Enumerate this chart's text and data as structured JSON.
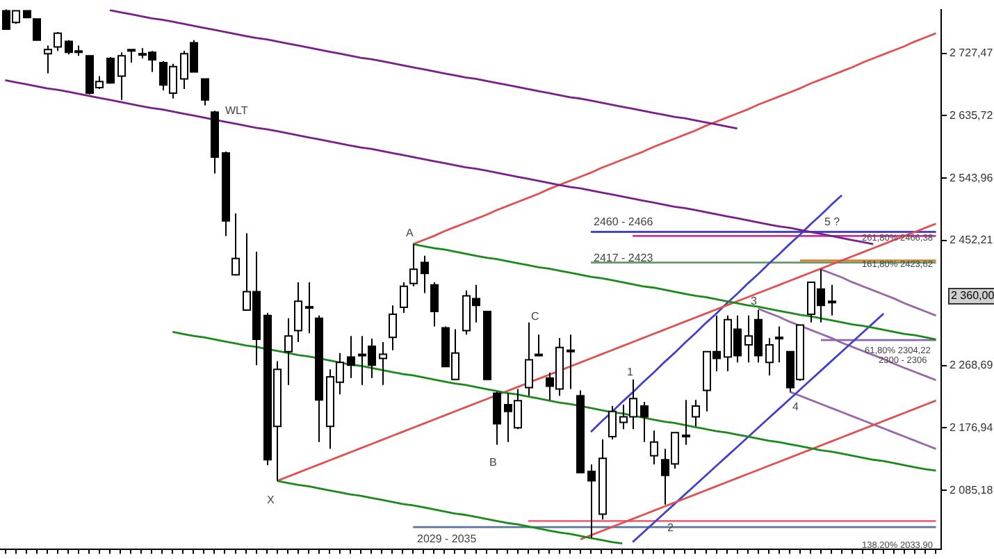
{
  "chart_data": {
    "type": "candlestick",
    "categories": [
      null,
      null,
      null,
      null,
      null,
      null,
      null,
      null,
      null,
      null,
      null,
      null,
      null,
      null,
      null,
      null,
      null,
      null,
      null,
      null,
      null,
      null,
      null,
      null,
      null,
      null,
      null,
      null,
      null,
      null,
      null,
      null,
      null,
      null,
      null,
      null,
      null,
      null,
      null,
      null,
      null,
      null,
      null,
      null,
      null,
      null,
      null,
      null,
      null,
      null,
      null,
      null,
      null,
      null,
      null,
      null,
      null,
      null,
      null,
      null,
      null,
      null,
      null,
      null,
      null,
      null,
      null,
      null,
      null,
      null,
      null,
      null,
      null,
      null,
      null,
      null,
      null,
      null,
      null,
      null,
      null,
      null,
      null,
      null,
      null,
      null,
      null,
      null,
      null,
      null
    ],
    "ohlc": [
      [
        2790,
        2792,
        2763,
        2763
      ],
      [
        2773,
        2790,
        2771,
        2790
      ],
      [
        2790,
        2790,
        2780,
        2780
      ],
      [
        2778,
        2778,
        2747,
        2747
      ],
      [
        2727,
        2739,
        2698,
        2733
      ],
      [
        2737,
        2759,
        2731,
        2757
      ],
      [
        2745,
        2747,
        2726,
        2729
      ],
      [
        2731,
        2739,
        2724,
        2731
      ],
      [
        2724,
        2724,
        2667,
        2669
      ],
      [
        2677,
        2694,
        2675,
        2686
      ],
      [
        2720,
        2722,
        2683,
        2684
      ],
      [
        2694,
        2729,
        2659,
        2724
      ],
      [
        2733,
        2733,
        2714,
        2733
      ],
      [
        2726,
        2735,
        2720,
        2727
      ],
      [
        2729,
        2731,
        2700,
        2718
      ],
      [
        2714,
        2716,
        2673,
        2681
      ],
      [
        2669,
        2712,
        2661,
        2708
      ],
      [
        2690,
        2731,
        2675,
        2727
      ],
      [
        2743,
        2747,
        2700,
        2700
      ],
      [
        2690,
        2690,
        2651,
        2659
      ],
      [
        2641,
        2643,
        2551,
        2575
      ],
      [
        2581,
        2583,
        2459,
        2481
      ],
      [
        2402,
        2492,
        2401,
        2426
      ],
      [
        2350,
        2463,
        2350,
        2377
      ],
      [
        2377,
        2436,
        2269,
        2307
      ],
      [
        2342,
        2346,
        2122,
        2130
      ],
      [
        2179,
        2275,
        2099,
        2263
      ],
      [
        2289,
        2338,
        2240,
        2312
      ],
      [
        2320,
        2391,
        2303,
        2363
      ],
      [
        2355,
        2391,
        2316,
        2355
      ],
      [
        2338,
        2342,
        2156,
        2218
      ],
      [
        2179,
        2263,
        2146,
        2252
      ],
      [
        2244,
        2287,
        2226,
        2273
      ],
      [
        2281,
        2312,
        2250,
        2269
      ],
      [
        2285,
        2312,
        2240,
        2285
      ],
      [
        2297,
        2308,
        2250,
        2269
      ],
      [
        2279,
        2303,
        2240,
        2285
      ],
      [
        2310,
        2357,
        2291,
        2344
      ],
      [
        2354,
        2391,
        2346,
        2385
      ],
      [
        2389,
        2447,
        2385,
        2410
      ],
      [
        2420,
        2430,
        2375,
        2404
      ],
      [
        2387,
        2391,
        2326,
        2348
      ],
      [
        2324,
        2326,
        2267,
        2267
      ],
      [
        2248,
        2322,
        2248,
        2287
      ],
      [
        2320,
        2379,
        2314,
        2371
      ],
      [
        2367,
        2387,
        2332,
        2357
      ],
      [
        2348,
        2348,
        2248,
        2248
      ],
      [
        2228,
        2230,
        2152,
        2183
      ],
      [
        2211,
        2228,
        2156,
        2201
      ],
      [
        2177,
        2234,
        2175,
        2217
      ],
      [
        2236,
        2332,
        2224,
        2277
      ],
      [
        2285,
        2314,
        2283,
        2285
      ],
      [
        2250,
        2258,
        2218,
        2238
      ],
      [
        2234,
        2309,
        2224,
        2295
      ],
      [
        2291,
        2314,
        2234,
        2291
      ],
      [
        2224,
        2232,
        2111,
        2111
      ],
      [
        2113,
        2123,
        2015,
        2099
      ],
      [
        2050,
        2160,
        2042,
        2132
      ],
      [
        2164,
        2209,
        2160,
        2201
      ],
      [
        2185,
        2211,
        2175,
        2193
      ],
      [
        2193,
        2248,
        2175,
        2220
      ],
      [
        2209,
        2215,
        2156,
        2193
      ],
      [
        2136,
        2173,
        2123,
        2156
      ],
      [
        2130,
        2146,
        2064,
        2107
      ],
      [
        2124,
        2170,
        2117,
        2170
      ],
      [
        2166,
        2218,
        2152,
        2166
      ],
      [
        2193,
        2218,
        2179,
        2209
      ],
      [
        2232,
        2289,
        2201,
        2289
      ],
      [
        2289,
        2342,
        2260,
        2279
      ],
      [
        2281,
        2342,
        2260,
        2336
      ],
      [
        2322,
        2342,
        2273,
        2283
      ],
      [
        2299,
        2342,
        2273,
        2312
      ],
      [
        2336,
        2350,
        2273,
        2283
      ],
      [
        2273,
        2309,
        2254,
        2299
      ],
      [
        2310,
        2326,
        2273,
        2310
      ],
      [
        2289,
        2289,
        2230,
        2236
      ],
      [
        2248,
        2328,
        2246,
        2328
      ],
      [
        2344,
        2391,
        2332,
        2391
      ],
      [
        2381,
        2410,
        2332,
        2357
      ],
      [
        2363,
        2387,
        2342,
        2363
      ],
      null,
      null,
      null,
      null,
      null,
      null,
      null,
      null,
      null,
      null
    ],
    "series": [
      {
        "type": "line",
        "color": "#7a1f8a",
        "values": [
          null,
          null,
          null,
          null,
          null,
          null,
          null,
          null,
          null,
          null,
          2791,
          2788,
          2785,
          2782,
          2779,
          2777,
          2774,
          2771,
          2768,
          2765,
          2762,
          2759,
          2756,
          2753,
          2750,
          2748,
          2745,
          2742,
          2739,
          2736,
          2733,
          2730,
          2727,
          2724,
          2721,
          2719,
          2716,
          2713,
          2710,
          2707,
          2704,
          2701,
          2698,
          2695,
          2692,
          2690,
          2687,
          2684,
          2681,
          2678,
          2675,
          2672,
          2669,
          2666,
          2663,
          2661,
          2658,
          2655,
          2652,
          2649,
          2646,
          2643,
          2640,
          2637,
          2634,
          2632,
          2629,
          2626,
          2623,
          2620,
          2617,
          null,
          null,
          null,
          null,
          null,
          null,
          null,
          null,
          null,
          null,
          null,
          null,
          null,
          null,
          null,
          null,
          null,
          null,
          null
        ]
      },
      {
        "type": "line",
        "color": "#7a1f8a",
        "values": [
          2688,
          2685,
          2682,
          2679,
          2676,
          2674,
          2671,
          2668,
          2665,
          2662,
          2659,
          2656,
          2653,
          2650,
          2647,
          2645,
          2642,
          2639,
          2636,
          2633,
          2630,
          2627,
          2624,
          2621,
          2618,
          2616,
          2613,
          2610,
          2607,
          2604,
          2601,
          2598,
          2595,
          2592,
          2589,
          2587,
          2584,
          2581,
          2578,
          2575,
          2572,
          2569,
          2566,
          2563,
          2560,
          2558,
          2555,
          2552,
          2549,
          2546,
          2543,
          2540,
          2537,
          2534,
          2531,
          2529,
          2526,
          2523,
          2520,
          2517,
          2514,
          2511,
          2508,
          2505,
          2502,
          2500,
          2497,
          2494,
          2491,
          2488,
          2485,
          2482,
          2479,
          2476,
          2473,
          2471,
          2468,
          2465,
          2462,
          2459,
          2456,
          2453,
          2450,
          2447,
          null,
          null,
          null,
          null,
          null,
          null
        ]
      },
      {
        "type": "line",
        "color": "#1a8a1a",
        "values": [
          null,
          null,
          null,
          null,
          null,
          null,
          null,
          null,
          null,
          null,
          null,
          null,
          null,
          null,
          null,
          null,
          null,
          null,
          null,
          null,
          null,
          null,
          null,
          null,
          null,
          null,
          null,
          null,
          null,
          null,
          null,
          null,
          null,
          null,
          null,
          null,
          null,
          null,
          null,
          2447,
          2444,
          2441,
          2439,
          2436,
          2433,
          2430,
          2427,
          2425,
          2422,
          2419,
          2416,
          2413,
          2411,
          2408,
          2405,
          2402,
          2399,
          2397,
          2394,
          2391,
          2388,
          2385,
          2383,
          2380,
          2377,
          2374,
          2371,
          2369,
          2366,
          2363,
          2360,
          2357,
          2355,
          2352,
          2349,
          2346,
          2343,
          2341,
          2338,
          2335,
          2332,
          2329,
          2327,
          2324,
          2321,
          2318,
          2315,
          2313,
          2310,
          2307
        ]
      },
      {
        "type": "line",
        "color": "#1a8a1a",
        "values": [
          null,
          null,
          null,
          null,
          null,
          null,
          null,
          null,
          null,
          null,
          null,
          null,
          null,
          null,
          null,
          null,
          2318,
          2315,
          2312,
          2310,
          2307,
          2304,
          2301,
          2298,
          2296,
          2293,
          2290,
          2287,
          2284,
          2282,
          2279,
          2276,
          2273,
          2270,
          2268,
          2265,
          2262,
          2259,
          2256,
          2254,
          2251,
          2248,
          2245,
          2242,
          2240,
          2237,
          2234,
          2231,
          2228,
          2226,
          2223,
          2220,
          2217,
          2214,
          2212,
          2209,
          2206,
          2203,
          2200,
          2198,
          2195,
          2192,
          2189,
          2186,
          2184,
          2181,
          2178,
          2175,
          2172,
          2170,
          2167,
          2164,
          2161,
          2158,
          2156,
          2153,
          2150,
          2147,
          2144,
          2142,
          2139,
          2136,
          2133,
          2130,
          2128,
          2125,
          2122,
          2119,
          2116,
          2114
        ]
      },
      {
        "type": "line",
        "color": "#1a8a1a",
        "values": [
          null,
          null,
          null,
          null,
          null,
          null,
          null,
          null,
          null,
          null,
          null,
          null,
          null,
          null,
          null,
          null,
          null,
          null,
          null,
          null,
          null,
          null,
          null,
          null,
          null,
          null,
          2099,
          2096,
          2093,
          2091,
          2088,
          2085,
          2082,
          2079,
          2077,
          2074,
          2071,
          2068,
          2065,
          2063,
          2060,
          2057,
          2054,
          2051,
          2049,
          2046,
          2043,
          2040,
          2037,
          2035,
          2032,
          2029,
          2026,
          2023,
          2021,
          2018,
          2015,
          2012,
          2009,
          2007,
          null,
          null,
          null,
          null,
          null,
          null,
          null,
          null,
          null,
          null,
          null,
          null,
          null,
          null,
          null,
          null,
          null,
          null,
          null,
          null,
          null,
          null,
          null,
          null,
          null,
          null,
          null,
          null,
          null,
          null
        ]
      },
      {
        "type": "line",
        "color": "#e05050",
        "values": [
          null,
          null,
          null,
          null,
          null,
          null,
          null,
          null,
          null,
          null,
          null,
          null,
          null,
          null,
          null,
          null,
          null,
          null,
          null,
          null,
          null,
          null,
          null,
          null,
          null,
          null,
          2099,
          2105,
          2111,
          2117,
          2123,
          2129,
          2135,
          2141,
          2147,
          2153,
          2159,
          2165,
          2171,
          2177,
          2183,
          2189,
          2195,
          2201,
          2207,
          2213,
          2219,
          2225,
          2231,
          2237,
          2243,
          2249,
          2255,
          2261,
          2267,
          2273,
          2279,
          2285,
          2291,
          2297,
          2303,
          2309,
          2315,
          2321,
          2327,
          2333,
          2339,
          2345,
          2351,
          2357,
          2363,
          2369,
          2375,
          2381,
          2387,
          2393,
          2399,
          2405,
          2411,
          2417,
          2423,
          2429,
          2435,
          2441,
          2447,
          2453,
          2459,
          2465,
          2471,
          2477
        ]
      },
      {
        "type": "line",
        "color": "#e05050",
        "values": [
          null,
          null,
          null,
          null,
          null,
          null,
          null,
          null,
          null,
          null,
          null,
          null,
          null,
          null,
          null,
          null,
          null,
          null,
          null,
          null,
          null,
          null,
          null,
          null,
          null,
          null,
          null,
          null,
          null,
          null,
          null,
          null,
          null,
          null,
          null,
          null,
          null,
          null,
          null,
          2447,
          2453,
          2459,
          2466,
          2472,
          2478,
          2484,
          2490,
          2497,
          2503,
          2509,
          2515,
          2521,
          2528,
          2534,
          2540,
          2546,
          2552,
          2559,
          2565,
          2571,
          2577,
          2583,
          2590,
          2596,
          2602,
          2608,
          2614,
          2621,
          2627,
          2633,
          2639,
          2645,
          2652,
          2658,
          2664,
          2670,
          2676,
          2683,
          2689,
          2695,
          2701,
          2707,
          2714,
          2720,
          2726,
          2732,
          2738,
          2745,
          2751,
          2757
        ]
      },
      {
        "type": "line",
        "color": "#e05050",
        "values": [
          null,
          null,
          null,
          null,
          null,
          null,
          null,
          null,
          null,
          null,
          null,
          null,
          null,
          null,
          null,
          null,
          null,
          null,
          null,
          null,
          null,
          null,
          null,
          null,
          null,
          null,
          null,
          null,
          null,
          null,
          null,
          null,
          null,
          null,
          null,
          null,
          null,
          null,
          null,
          null,
          null,
          null,
          null,
          null,
          null,
          null,
          null,
          null,
          null,
          null,
          null,
          null,
          null,
          null,
          null,
          2013,
          2019,
          2025,
          2031,
          2037,
          2043,
          2049,
          2055,
          2061,
          2067,
          2073,
          2079,
          2085,
          2091,
          2097,
          2103,
          2109,
          2115,
          2121,
          2127,
          2133,
          2139,
          2145,
          2151,
          2157,
          2163,
          2169,
          2175,
          2181,
          2187,
          2193,
          2199,
          2205,
          2211,
          2217
        ]
      },
      {
        "type": "line",
        "color": "#4040cc",
        "values": [
          null,
          null,
          null,
          null,
          null,
          null,
          null,
          null,
          null,
          null,
          null,
          null,
          null,
          null,
          null,
          null,
          null,
          null,
          null,
          null,
          null,
          null,
          null,
          null,
          null,
          null,
          null,
          null,
          null,
          null,
          null,
          null,
          null,
          null,
          null,
          null,
          null,
          null,
          null,
          null,
          null,
          null,
          null,
          null,
          null,
          null,
          null,
          null,
          null,
          null,
          null,
          null,
          null,
          null,
          null,
          null,
          2171,
          2186,
          2200,
          2215,
          2229,
          2244,
          2258,
          2273,
          2287,
          2302,
          2316,
          2331,
          2345,
          2360,
          2374,
          2389,
          2403,
          2418,
          2432,
          2447,
          2461,
          2476,
          2490,
          2505,
          2519,
          null,
          null,
          null,
          null,
          null,
          null,
          null,
          null,
          null
        ]
      },
      {
        "type": "line",
        "color": "#4040cc",
        "values": [
          null,
          null,
          null,
          null,
          null,
          null,
          null,
          null,
          null,
          null,
          null,
          null,
          null,
          null,
          null,
          null,
          null,
          null,
          null,
          null,
          null,
          null,
          null,
          null,
          null,
          null,
          null,
          null,
          null,
          null,
          null,
          null,
          null,
          null,
          null,
          null,
          null,
          null,
          null,
          null,
          null,
          null,
          null,
          null,
          null,
          null,
          null,
          null,
          null,
          null,
          null,
          null,
          null,
          null,
          null,
          null,
          null,
          null,
          null,
          null,
          2009,
          2023,
          2037,
          2051,
          2065,
          2079,
          2093,
          2107,
          2121,
          2135,
          2149,
          2163,
          2177,
          2191,
          2205,
          2219,
          2233,
          2247,
          2261,
          2275,
          2289,
          2303,
          2317,
          2331,
          2345,
          null,
          null,
          null,
          null,
          null
        ]
      },
      {
        "type": "line",
        "color": "#9966aa",
        "values": [
          null,
          null,
          null,
          null,
          null,
          null,
          null,
          null,
          null,
          null,
          null,
          null,
          null,
          null,
          null,
          null,
          null,
          null,
          null,
          null,
          null,
          null,
          null,
          null,
          null,
          null,
          null,
          null,
          null,
          null,
          null,
          null,
          null,
          null,
          null,
          null,
          null,
          null,
          null,
          null,
          null,
          null,
          null,
          null,
          null,
          null,
          null,
          null,
          null,
          null,
          null,
          null,
          null,
          null,
          null,
          null,
          null,
          null,
          null,
          null,
          null,
          null,
          null,
          null,
          null,
          null,
          null,
          null,
          null,
          null,
          null,
          null,
          2352,
          2346,
          2340,
          2333,
          2327,
          2321,
          2315,
          2309,
          2302,
          2296,
          2290,
          2284,
          2278,
          2271,
          2265,
          2259,
          2253,
          2247
        ]
      },
      {
        "type": "line",
        "color": "#9966aa",
        "values": [
          null,
          null,
          null,
          null,
          null,
          null,
          null,
          null,
          null,
          null,
          null,
          null,
          null,
          null,
          null,
          null,
          null,
          null,
          null,
          null,
          null,
          null,
          null,
          null,
          null,
          null,
          null,
          null,
          null,
          null,
          null,
          null,
          null,
          null,
          null,
          null,
          null,
          null,
          null,
          null,
          null,
          null,
          null,
          null,
          null,
          null,
          null,
          null,
          null,
          null,
          null,
          null,
          null,
          null,
          null,
          null,
          null,
          null,
          null,
          null,
          null,
          null,
          null,
          null,
          null,
          null,
          null,
          null,
          null,
          null,
          null,
          null,
          null,
          null,
          null,
          2230,
          2224,
          2218,
          2212,
          2206,
          2200,
          2194,
          2188,
          2182,
          2176,
          2170,
          2164,
          2158,
          2152,
          2146
        ]
      },
      {
        "type": "line",
        "color": "#9966aa",
        "values": [
          null,
          null,
          null,
          null,
          null,
          null,
          null,
          null,
          null,
          null,
          null,
          null,
          null,
          null,
          null,
          null,
          null,
          null,
          null,
          null,
          null,
          null,
          null,
          null,
          null,
          null,
          null,
          null,
          null,
          null,
          null,
          null,
          null,
          null,
          null,
          null,
          null,
          null,
          null,
          null,
          null,
          null,
          null,
          null,
          null,
          null,
          null,
          null,
          null,
          null,
          null,
          null,
          null,
          null,
          null,
          null,
          null,
          null,
          null,
          null,
          null,
          null,
          null,
          null,
          null,
          null,
          null,
          null,
          null,
          null,
          null,
          null,
          null,
          null,
          null,
          null,
          null,
          null,
          2410,
          2404,
          2398,
          2391,
          2385,
          2379,
          2373,
          2367,
          2360,
          2354,
          2348,
          2342
        ]
      },
      {
        "type": "line",
        "color": "#4444cc",
        "values": [
          null,
          null,
          null,
          null,
          null,
          null,
          null,
          null,
          null,
          null,
          null,
          null,
          null,
          null,
          null,
          null,
          null,
          null,
          null,
          null,
          null,
          null,
          null,
          null,
          null,
          null,
          null,
          null,
          null,
          null,
          null,
          null,
          null,
          null,
          null,
          null,
          null,
          null,
          null,
          null,
          null,
          null,
          null,
          null,
          null,
          null,
          null,
          null,
          null,
          null,
          null,
          null,
          null,
          null,
          null,
          null,
          2465,
          2465,
          2465,
          2465,
          2465,
          2465,
          2465,
          2465,
          2465,
          2465,
          2465,
          2465,
          2465,
          2465,
          2465,
          2465,
          2465,
          2465,
          2465,
          2465,
          2465,
          2465,
          2465,
          2465,
          2465,
          2465,
          2465,
          2465,
          2465,
          2465,
          2465,
          2465,
          2465,
          2465
        ]
      },
      {
        "type": "line",
        "color": "#cc3399",
        "values": [
          null,
          null,
          null,
          null,
          null,
          null,
          null,
          null,
          null,
          null,
          null,
          null,
          null,
          null,
          null,
          null,
          null,
          null,
          null,
          null,
          null,
          null,
          null,
          null,
          null,
          null,
          null,
          null,
          null,
          null,
          null,
          null,
          null,
          null,
          null,
          null,
          null,
          null,
          null,
          null,
          null,
          null,
          null,
          null,
          null,
          null,
          null,
          null,
          null,
          null,
          null,
          null,
          null,
          null,
          null,
          null,
          null,
          null,
          null,
          null,
          2459,
          2459,
          2459,
          2459,
          2459,
          2459,
          2459,
          2459,
          2459,
          2459,
          2459,
          2459,
          2459,
          2459,
          2459,
          2459,
          2459,
          2459,
          2459,
          2459,
          2459,
          2459,
          2459,
          2459,
          2459,
          2459,
          2459,
          2459,
          2459,
          2459
        ]
      },
      {
        "type": "line",
        "color": "#669966",
        "values": [
          null,
          null,
          null,
          null,
          null,
          null,
          null,
          null,
          null,
          null,
          null,
          null,
          null,
          null,
          null,
          null,
          null,
          null,
          null,
          null,
          null,
          null,
          null,
          null,
          null,
          null,
          null,
          null,
          null,
          null,
          null,
          null,
          null,
          null,
          null,
          null,
          null,
          null,
          null,
          null,
          null,
          null,
          null,
          null,
          null,
          null,
          null,
          null,
          null,
          null,
          null,
          null,
          null,
          null,
          null,
          null,
          2420,
          2420,
          2420,
          2420,
          2420,
          2420,
          2420,
          2420,
          2420,
          2420,
          2420,
          2420,
          2420,
          2420,
          2420,
          2420,
          2420,
          2420,
          2420,
          2420,
          2420,
          2420,
          2420,
          2420,
          2420,
          2420,
          2420,
          2420,
          2420,
          2420,
          2420,
          2420,
          2420,
          2420
        ]
      },
      {
        "type": "line",
        "color": "#e08030",
        "values": [
          null,
          null,
          null,
          null,
          null,
          null,
          null,
          null,
          null,
          null,
          null,
          null,
          null,
          null,
          null,
          null,
          null,
          null,
          null,
          null,
          null,
          null,
          null,
          null,
          null,
          null,
          null,
          null,
          null,
          null,
          null,
          null,
          null,
          null,
          null,
          null,
          null,
          null,
          null,
          null,
          null,
          null,
          null,
          null,
          null,
          null,
          null,
          null,
          null,
          null,
          null,
          null,
          null,
          null,
          null,
          null,
          null,
          null,
          null,
          null,
          null,
          null,
          null,
          null,
          null,
          null,
          null,
          null,
          null,
          null,
          null,
          null,
          null,
          null,
          null,
          null,
          2423,
          2423,
          2423,
          2423,
          2423,
          2423,
          2423,
          2423,
          2423,
          2423,
          2423,
          2423,
          2423,
          2423
        ]
      },
      {
        "type": "line",
        "color": "#8866aa",
        "values": [
          null,
          null,
          null,
          null,
          null,
          null,
          null,
          null,
          null,
          null,
          null,
          null,
          null,
          null,
          null,
          null,
          null,
          null,
          null,
          null,
          null,
          null,
          null,
          null,
          null,
          null,
          null,
          null,
          null,
          null,
          null,
          null,
          null,
          null,
          null,
          null,
          null,
          null,
          null,
          null,
          null,
          null,
          null,
          null,
          null,
          null,
          null,
          null,
          null,
          null,
          null,
          null,
          null,
          null,
          null,
          null,
          null,
          null,
          null,
          null,
          null,
          null,
          null,
          null,
          null,
          null,
          null,
          null,
          null,
          null,
          null,
          null,
          null,
          null,
          null,
          null,
          null,
          null,
          2306,
          2306,
          2306,
          2306,
          2306,
          2306,
          2306,
          2306,
          2306,
          2306,
          2306,
          2306
        ]
      },
      {
        "type": "line",
        "color": "#ee6677",
        "values": [
          null,
          null,
          null,
          null,
          null,
          null,
          null,
          null,
          null,
          null,
          null,
          null,
          null,
          null,
          null,
          null,
          null,
          null,
          null,
          null,
          null,
          null,
          null,
          null,
          null,
          null,
          null,
          null,
          null,
          null,
          null,
          null,
          null,
          null,
          null,
          null,
          null,
          null,
          null,
          null,
          null,
          null,
          null,
          null,
          null,
          null,
          null,
          null,
          null,
          null,
          2040,
          2040,
          2040,
          2040,
          2040,
          2040,
          2040,
          2040,
          2040,
          2040,
          2040,
          2040,
          2040,
          2040,
          2040,
          2040,
          2040,
          2040,
          2040,
          2040,
          2040,
          2040,
          2040,
          2040,
          2040,
          2040,
          2040,
          2040,
          2040,
          2040,
          2040,
          2040,
          2040,
          2040,
          2040,
          2040,
          2040,
          2040,
          2040,
          2040
        ]
      },
      {
        "type": "line",
        "color": "#557799",
        "values": [
          null,
          null,
          null,
          null,
          null,
          null,
          null,
          null,
          null,
          null,
          null,
          null,
          null,
          null,
          null,
          null,
          null,
          null,
          null,
          null,
          null,
          null,
          null,
          null,
          null,
          null,
          null,
          null,
          null,
          null,
          null,
          null,
          null,
          null,
          null,
          null,
          null,
          null,
          null,
          2031,
          2031,
          2031,
          2031,
          2031,
          2031,
          2031,
          2031,
          2031,
          2031,
          2031,
          2031,
          2031,
          2031,
          2031,
          2031,
          2031,
          2031,
          2031,
          2031,
          2031,
          2031,
          2031,
          2031,
          2031,
          2031,
          2031,
          2031,
          2031,
          2031,
          2031,
          2031,
          2031,
          2031,
          2031,
          2031,
          2031,
          2031,
          2031,
          2031,
          2031,
          2031,
          2031,
          2031,
          2031,
          2031,
          2031,
          2031,
          2031,
          2031,
          2031
        ]
      }
    ],
    "annotations": [
      "WLT",
      "A",
      "X",
      "B",
      "C",
      "1",
      "2",
      "3",
      "4",
      "5 ?",
      "2460 - 2466",
      "2417 - 2423",
      "2029 - 2035",
      "261,80% 2466,38",
      "161,80% 2423,62",
      "61,80% 2304,22",
      "2300 - 2306",
      "138,20% 2033,90",
      "2 360,00"
    ],
    "ylim": [
      1998,
      2792
    ],
    "yticks": [
      {
        "value": 2085.18,
        "label": "2 085,18"
      },
      {
        "value": 2176.94,
        "label": "2 176,94"
      },
      {
        "value": 2268.69,
        "label": "2 268,69"
      },
      {
        "value": 2452.21,
        "label": "2 452,21"
      },
      {
        "value": 2543.96,
        "label": "2 543,96"
      },
      {
        "value": 2635.72,
        "label": "2 635,72"
      },
      {
        "value": 2727.47,
        "label": "2 727,47"
      }
    ],
    "tick_labels": "y",
    "grid": false,
    "legend": false
  }
}
